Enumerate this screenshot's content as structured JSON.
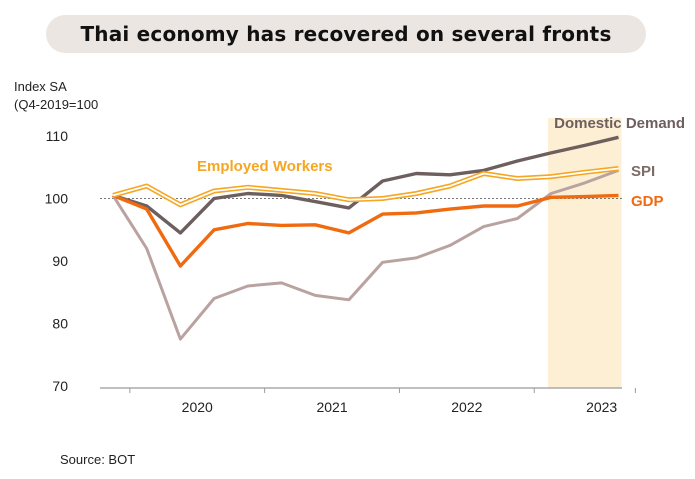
{
  "title": "Thai economy has recovered on several fronts",
  "y_axis_label_line1": "Index SA",
  "y_axis_label_line2": "(Q4-2019=100",
  "source": "Source: BOT",
  "chart_data": {
    "type": "line",
    "x": [
      "2019Q4",
      "2020Q1",
      "2020Q2",
      "2020Q3",
      "2020Q4",
      "2021Q1",
      "2021Q2",
      "2021Q3",
      "2021Q4",
      "2022Q1",
      "2022Q2",
      "2022Q3",
      "2022Q4",
      "2023Q1",
      "2023Q2",
      "2023Q3"
    ],
    "x_tick_labels": [
      "2020",
      "2021",
      "2022",
      "2023"
    ],
    "y_ticks": [
      70,
      80,
      90,
      100,
      110
    ],
    "ylim": [
      70,
      111
    ],
    "reference_line": 100,
    "highlight_band": [
      "2023Q1",
      "2023Q3"
    ],
    "series": [
      {
        "name": "Domestic Demand",
        "color": "#6e5f5f",
        "values": [
          100.5,
          98.8,
          94.5,
          100.0,
          100.8,
          100.5,
          99.5,
          98.5,
          102.8,
          104.0,
          103.8,
          104.5,
          106.0,
          107.3,
          108.5,
          109.8
        ]
      },
      {
        "name": "SPI",
        "color": "#b9a3a0",
        "values": [
          100.5,
          92.0,
          77.5,
          84.0,
          86.0,
          86.5,
          84.5,
          83.8,
          89.8,
          90.5,
          92.5,
          95.5,
          96.8,
          100.8,
          102.5,
          104.5
        ]
      },
      {
        "name": "GDP",
        "color": "#f06a10",
        "values": [
          100.5,
          98.3,
          89.2,
          95.0,
          96.0,
          95.7,
          95.8,
          94.5,
          97.5,
          97.7,
          98.3,
          98.8,
          98.8,
          100.2,
          100.3,
          100.5
        ]
      },
      {
        "name": "Employed Workers",
        "color": "#f5a623",
        "values": [
          100.5,
          102.0,
          99.0,
          101.2,
          101.8,
          101.3,
          100.8,
          99.8,
          100.0,
          100.8,
          102.0,
          104.0,
          103.2,
          103.5,
          104.2,
          104.8
        ]
      }
    ]
  }
}
